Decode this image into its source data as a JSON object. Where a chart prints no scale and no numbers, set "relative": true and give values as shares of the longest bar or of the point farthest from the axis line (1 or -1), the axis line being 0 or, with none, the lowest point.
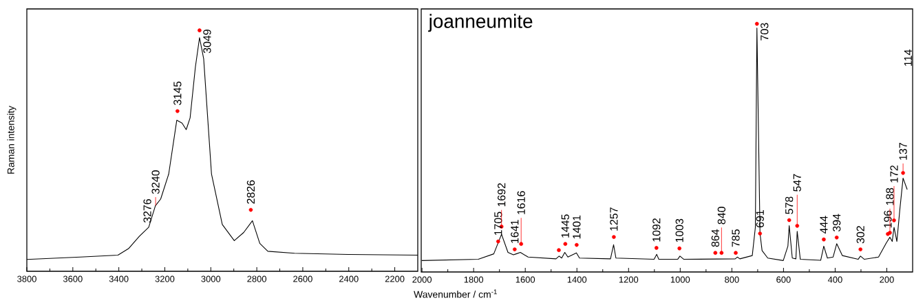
{
  "chart_data": [
    {
      "type": "line",
      "ylabel": "Raman intensity",
      "relative": true,
      "xlim": [
        3800,
        2100
      ],
      "xticks": [
        3800,
        3600,
        3400,
        3200,
        3000,
        2800,
        2600,
        2400,
        2200
      ],
      "series": [
        {
          "color": "#000000",
          "x": [
            3800,
            3567,
            3404,
            3358,
            3311,
            3270,
            3241,
            3218,
            3183,
            3148,
            3125,
            3107,
            3090,
            3067,
            3049,
            3031,
            2997,
            2950,
            2898,
            2857,
            2819,
            2787,
            2752,
            2636,
            2403,
            2100
          ],
          "values": [
            0.049,
            0.059,
            0.067,
            0.094,
            0.145,
            0.183,
            0.272,
            0.3,
            0.404,
            0.627,
            0.615,
            0.588,
            0.637,
            0.848,
            0.97,
            0.882,
            0.404,
            0.194,
            0.127,
            0.161,
            0.21,
            0.116,
            0.083,
            0.075,
            0.07,
            0.067
          ]
        },
        {
          "type": "scatter",
          "color": "#ff0000",
          "x": [
            3049,
            3145,
            2826
          ],
          "values": [
            1.0,
            0.665,
            0.255
          ]
        }
      ],
      "annotations": [
        {
          "text": "3276",
          "x": 3276,
          "y": 0.177
        },
        {
          "text": "3240",
          "x": 3240,
          "y": 0.273
        },
        {
          "text": "3145",
          "x": 3145,
          "y": 0.665
        },
        {
          "text": "3049",
          "x": 3049,
          "y": 1.0
        },
        {
          "text": "2826",
          "x": 2826,
          "y": 0.255
        }
      ]
    },
    {
      "type": "line",
      "title": "joanneumite",
      "xlabel": "Wavenumber / cm$^{-1}$",
      "relative": true,
      "xlim": [
        2003,
        100
      ],
      "xticks": [
        2000,
        1800,
        1600,
        1400,
        1200,
        1000,
        800,
        600,
        400,
        200
      ],
      "series": [
        {
          "color": "#000000",
          "x": [
            2001,
            1782,
            1722,
            1692,
            1667,
            1646,
            1635,
            1619,
            1589,
            1481,
            1469,
            1459,
            1447,
            1435,
            1402,
            1390,
            1270,
            1258,
            1249,
            1101,
            1091,
            1083,
            1010,
            1001,
            986,
            787,
            779,
            769,
            721,
            709,
            703,
            691,
            683,
            661,
            601,
            583,
            578,
            566,
            552,
            547,
            535,
            456,
            444,
            430,
            408,
            394,
            372,
            311,
            302,
            287,
            232,
            202,
            188,
            179,
            172,
            161,
            149,
            137,
            121
          ],
          "values": [
            0.046,
            0.051,
            0.073,
            0.152,
            0.079,
            0.069,
            0.073,
            0.079,
            0.06,
            0.053,
            0.064,
            0.056,
            0.079,
            0.06,
            0.077,
            0.056,
            0.053,
            0.11,
            0.056,
            0.051,
            0.071,
            0.051,
            0.051,
            0.064,
            0.051,
            0.053,
            0.06,
            0.053,
            0.066,
            0.18,
            0.983,
            0.155,
            0.086,
            0.056,
            0.046,
            0.104,
            0.187,
            0.056,
            0.053,
            0.164,
            0.051,
            0.047,
            0.104,
            0.056,
            0.06,
            0.114,
            0.066,
            0.051,
            0.064,
            0.051,
            0.06,
            0.117,
            0.14,
            0.123,
            0.18,
            0.123,
            0.257,
            0.378,
            0.332
          ]
        },
        {
          "type": "scatter",
          "color": "#ff0000",
          "x": [
            1705,
            1692,
            1641,
            1616,
            1470,
            1445,
            1401,
            1257,
            1092,
            1003,
            864,
            840,
            785,
            703,
            691,
            578,
            547,
            444,
            394,
            302,
            196,
            188,
            172,
            137
          ],
          "values": [
            0.123,
            0.183,
            0.091,
            0.113,
            0.088,
            0.113,
            0.109,
            0.141,
            0.097,
            0.095,
            0.077,
            0.077,
            0.077,
            1.0,
            0.155,
            0.209,
            0.186,
            0.131,
            0.139,
            0.091,
            0.153,
            0.158,
            0.208,
            0.399
          ]
        }
      ],
      "annotations": [
        {
          "text": "1705",
          "x": 1705,
          "y": 0.123
        },
        {
          "text": "1692",
          "x": 1692,
          "y": 0.183
        },
        {
          "text": "1641",
          "x": 1641,
          "y": 0.091
        },
        {
          "text": "1616",
          "x": 1616,
          "y": 0.113
        },
        {
          "text": "1445",
          "x": 1445,
          "y": 0.113
        },
        {
          "text": "1401",
          "x": 1401,
          "y": 0.109
        },
        {
          "text": "1257",
          "x": 1257,
          "y": 0.141
        },
        {
          "text": "1092",
          "x": 1092,
          "y": 0.097
        },
        {
          "text": "1003",
          "x": 1003,
          "y": 0.095
        },
        {
          "text": "864",
          "x": 864,
          "y": 0.077
        },
        {
          "text": "840",
          "x": 840,
          "y": 0.077
        },
        {
          "text": "785",
          "x": 785,
          "y": 0.077
        },
        {
          "text": "703",
          "x": 703,
          "y": 1.0
        },
        {
          "text": "691",
          "x": 691,
          "y": 0.155
        },
        {
          "text": "578",
          "x": 578,
          "y": 0.209
        },
        {
          "text": "547",
          "x": 547,
          "y": 0.186
        },
        {
          "text": "444",
          "x": 444,
          "y": 0.131
        },
        {
          "text": "394",
          "x": 394,
          "y": 0.139
        },
        {
          "text": "302",
          "x": 302,
          "y": 0.091
        },
        {
          "text": "196",
          "x": 196,
          "y": 0.153
        },
        {
          "text": "188",
          "x": 188,
          "y": 0.158
        },
        {
          "text": "172",
          "x": 172,
          "y": 0.208
        },
        {
          "text": "137",
          "x": 137,
          "y": 0.399
        },
        "114"
      ]
    }
  ]
}
